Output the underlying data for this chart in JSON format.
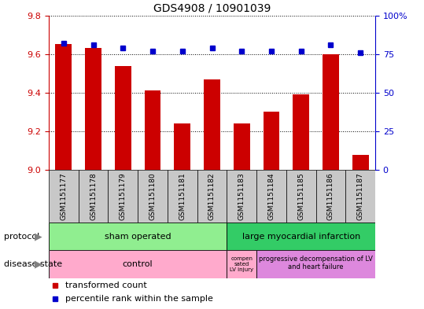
{
  "title": "GDS4908 / 10901039",
  "samples": [
    "GSM1151177",
    "GSM1151178",
    "GSM1151179",
    "GSM1151180",
    "GSM1151181",
    "GSM1151182",
    "GSM1151183",
    "GSM1151184",
    "GSM1151185",
    "GSM1151186",
    "GSM1151187"
  ],
  "transformed_count": [
    9.65,
    9.63,
    9.54,
    9.41,
    9.24,
    9.47,
    9.24,
    9.3,
    9.39,
    9.6,
    9.08
  ],
  "percentile_rank": [
    82,
    81,
    79,
    77,
    77,
    79,
    77,
    77,
    77,
    81,
    76
  ],
  "ylim_left": [
    9.0,
    9.8
  ],
  "ylim_right": [
    0,
    100
  ],
  "yticks_left": [
    9.0,
    9.2,
    9.4,
    9.6,
    9.8
  ],
  "yticks_right": [
    0,
    25,
    50,
    75,
    100
  ],
  "bar_color": "#cc0000",
  "dot_color": "#0000cc",
  "bar_width": 0.55,
  "sham_color": "#90ee90",
  "lmi_color": "#33cc66",
  "control_color": "#ffaacc",
  "comp_color": "#ffaacc",
  "prog_color": "#dd88dd",
  "label_gray": "#c8c8c8",
  "tick_color_left": "#cc0000",
  "tick_color_right": "#0000cc"
}
